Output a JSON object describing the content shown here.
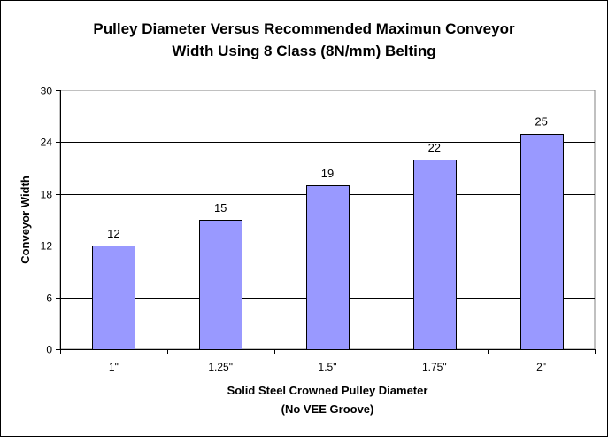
{
  "chart_data": {
    "type": "bar",
    "title": [
      "Pulley Diameter Versus Recommended Maximun Conveyor",
      "Width Using 8 Class (8N/mm) Belting"
    ],
    "xlabel": [
      "Solid Steel Crowned Pulley Diameter",
      "(No VEE Groove)"
    ],
    "ylabel": "Conveyor Width",
    "categories": [
      "1\"",
      "1.25\"",
      "1.5\"",
      "1.75\"",
      "2\""
    ],
    "values": [
      12,
      15,
      19,
      22,
      25
    ],
    "data_labels": [
      "12",
      "15",
      "19",
      "22",
      "25"
    ],
    "ylim": [
      0,
      30
    ],
    "yticks": [
      "0",
      "6",
      "12",
      "18",
      "24",
      "30"
    ],
    "grid": "horizontal",
    "legend": "none",
    "bar_color": "#9999FF",
    "bar_border": "#000000"
  }
}
